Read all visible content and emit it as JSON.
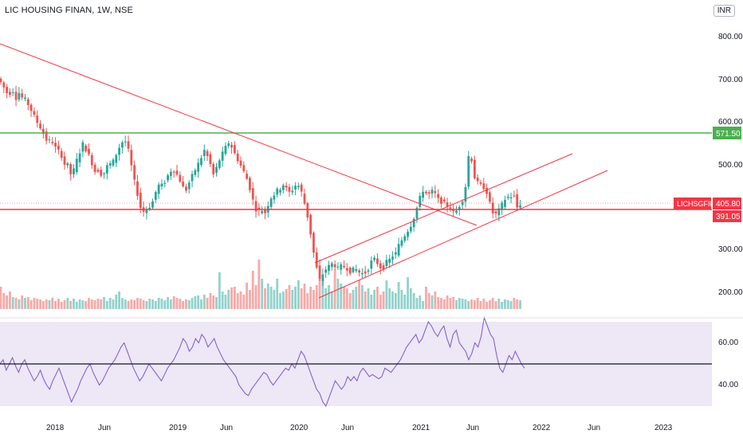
{
  "header": {
    "title": "LIC HOUSING FINAN, 1W, NSE",
    "currency": "INR"
  },
  "chart_data": {
    "type": "candlestick",
    "symbol": "LICHSGFIN",
    "interval": "1W",
    "exchange": "NSE",
    "price_axis": {
      "ticks": [
        "800.00",
        "700.00",
        "600.00",
        "500.00",
        "300.00",
        "200.00"
      ]
    },
    "time_axis": {
      "ticks": [
        "2018",
        "Jun",
        "2019",
        "Jun",
        "2020",
        "Jun",
        "2021",
        "Jun",
        "2022",
        "Jun",
        "2023"
      ]
    },
    "price_path": [
      [
        0,
        718
      ],
      [
        6,
        700
      ],
      [
        12,
        680
      ],
      [
        18,
        690
      ],
      [
        22,
        672
      ],
      [
        26,
        685
      ],
      [
        30,
        672
      ],
      [
        34,
        668
      ],
      [
        38,
        655
      ],
      [
        42,
        640
      ],
      [
        46,
        625
      ],
      [
        50,
        610
      ],
      [
        54,
        600
      ],
      [
        58,
        580
      ],
      [
        62,
        568
      ],
      [
        66,
        575
      ],
      [
        70,
        560
      ],
      [
        74,
        548
      ],
      [
        78,
        545
      ],
      [
        82,
        515
      ],
      [
        86,
        520
      ],
      [
        90,
        492
      ],
      [
        94,
        500
      ],
      [
        98,
        525
      ],
      [
        102,
        545
      ],
      [
        106,
        565
      ],
      [
        110,
        550
      ],
      [
        114,
        535
      ],
      [
        118,
        515
      ],
      [
        122,
        495
      ],
      [
        126,
        505
      ],
      [
        130,
        488
      ],
      [
        134,
        500
      ],
      [
        138,
        520
      ],
      [
        142,
        515
      ],
      [
        146,
        532
      ],
      [
        150,
        550
      ],
      [
        154,
        565
      ],
      [
        158,
        575
      ],
      [
        162,
        558
      ],
      [
        166,
        520
      ],
      [
        170,
        480
      ],
      [
        174,
        450
      ],
      [
        178,
        415
      ],
      [
        182,
        405
      ],
      [
        186,
        410
      ],
      [
        190,
        418
      ],
      [
        194,
        430
      ],
      [
        198,
        455
      ],
      [
        202,
        470
      ],
      [
        206,
        465
      ],
      [
        210,
        480
      ],
      [
        214,
        495
      ],
      [
        218,
        505
      ],
      [
        222,
        498
      ],
      [
        226,
        485
      ],
      [
        230,
        470
      ],
      [
        234,
        450
      ],
      [
        238,
        468
      ],
      [
        242,
        485
      ],
      [
        246,
        500
      ],
      [
        250,
        515
      ],
      [
        254,
        530
      ],
      [
        258,
        550
      ],
      [
        262,
        535
      ],
      [
        266,
        515
      ],
      [
        270,
        490
      ],
      [
        274,
        510
      ],
      [
        278,
        530
      ],
      [
        282,
        545
      ],
      [
        286,
        560
      ],
      [
        290,
        570
      ],
      [
        294,
        550
      ],
      [
        298,
        535
      ],
      [
        302,
        520
      ],
      [
        306,
        505
      ],
      [
        310,
        490
      ],
      [
        314,
        470
      ],
      [
        318,
        440
      ],
      [
        322,
        412
      ],
      [
        326,
        405
      ],
      [
        330,
        410
      ],
      [
        334,
        400
      ],
      [
        338,
        420
      ],
      [
        342,
        438
      ],
      [
        346,
        445
      ],
      [
        350,
        455
      ],
      [
        354,
        460
      ],
      [
        358,
        470
      ],
      [
        362,
        455
      ],
      [
        366,
        448
      ],
      [
        370,
        460
      ],
      [
        374,
        470
      ],
      [
        378,
        462
      ],
      [
        382,
        440
      ],
      [
        386,
        408
      ],
      [
        390,
        375
      ],
      [
        394,
        320
      ],
      [
        398,
        285
      ],
      [
        402,
        240
      ],
      [
        406,
        255
      ],
      [
        410,
        268
      ],
      [
        414,
        275
      ],
      [
        418,
        282
      ],
      [
        422,
        278
      ],
      [
        426,
        270
      ],
      [
        430,
        276
      ],
      [
        434,
        275
      ],
      [
        438,
        270
      ],
      [
        442,
        262
      ],
      [
        446,
        270
      ],
      [
        450,
        268
      ],
      [
        454,
        258
      ],
      [
        458,
        260
      ],
      [
        462,
        262
      ],
      [
        466,
        280
      ],
      [
        470,
        295
      ],
      [
        474,
        288
      ],
      [
        478,
        275
      ],
      [
        482,
        270
      ],
      [
        486,
        285
      ],
      [
        490,
        290
      ],
      [
        494,
        300
      ],
      [
        498,
        305
      ],
      [
        502,
        325
      ],
      [
        506,
        338
      ],
      [
        510,
        350
      ],
      [
        514,
        362
      ],
      [
        518,
        375
      ],
      [
        522,
        395
      ],
      [
        526,
        420
      ],
      [
        530,
        445
      ],
      [
        534,
        460
      ],
      [
        538,
        440
      ],
      [
        542,
        450
      ],
      [
        546,
        455
      ],
      [
        550,
        435
      ],
      [
        554,
        430
      ],
      [
        558,
        425
      ],
      [
        562,
        420
      ],
      [
        566,
        415
      ],
      [
        570,
        402
      ],
      [
        574,
        405
      ],
      [
        578,
        418
      ],
      [
        582,
        432
      ],
      [
        586,
        465
      ],
      [
        590,
        540
      ],
      [
        594,
        525
      ],
      [
        598,
        478
      ],
      [
        602,
        470
      ],
      [
        606,
        465
      ],
      [
        610,
        460
      ],
      [
        614,
        445
      ],
      [
        618,
        410
      ],
      [
        622,
        395
      ],
      [
        626,
        402
      ],
      [
        630,
        415
      ],
      [
        634,
        430
      ],
      [
        638,
        440
      ],
      [
        642,
        438
      ],
      [
        646,
        448
      ],
      [
        650,
        412
      ],
      [
        654,
        425
      ],
      [
        658,
        405
      ]
    ],
    "volume_series": [
      28,
      20,
      17,
      22,
      15,
      14,
      12,
      17,
      14,
      15,
      11,
      14,
      13,
      12,
      10,
      12,
      11,
      14,
      10,
      13,
      9,
      11,
      14,
      10,
      13,
      9,
      12,
      11,
      10,
      14,
      12,
      11,
      13,
      12,
      15,
      10,
      14,
      12,
      18,
      22,
      14,
      12,
      10,
      12,
      11,
      14,
      13,
      11,
      10,
      13,
      12,
      10,
      14,
      13,
      11,
      15,
      12,
      16,
      14,
      13,
      10,
      12,
      11,
      14,
      16,
      17,
      12,
      18,
      14,
      20,
      17,
      15,
      46,
      22,
      18,
      24,
      27,
      28,
      20,
      22,
      18,
      33,
      24,
      48,
      30,
      62,
      38,
      26,
      32,
      28,
      24,
      38,
      20,
      22,
      25,
      30,
      24,
      28,
      36,
      26,
      32,
      20,
      28,
      24,
      30,
      40,
      36,
      26,
      30,
      22,
      50,
      38,
      32,
      28,
      26,
      20,
      24,
      28,
      36,
      30,
      22,
      26,
      18,
      24,
      28,
      18,
      22,
      36,
      26,
      22,
      20,
      34,
      24,
      18,
      40,
      26,
      20,
      14,
      17,
      10
    ],
    "hlines": [
      {
        "label": "571.50",
        "color": "#4caf50"
      },
      {
        "label": "391.05",
        "color": "#f23645"
      }
    ],
    "last_price": "405.80",
    "trendline_color": "#f23645",
    "rsi": {
      "ticks": [
        "60.00",
        "40.00"
      ],
      "mid_value": 50,
      "line_color": "#7e57c2",
      "series": [
        50,
        52,
        47,
        50,
        53,
        49,
        46,
        50,
        52,
        48,
        45,
        42,
        44,
        47,
        43,
        40,
        38,
        42,
        45,
        48,
        44,
        40,
        36,
        32,
        35,
        38,
        42,
        45,
        48,
        50,
        46,
        43,
        40,
        42,
        45,
        48,
        50,
        52,
        55,
        58,
        60,
        56,
        52,
        48,
        45,
        42,
        44,
        47,
        50,
        48,
        46,
        44,
        42,
        45,
        48,
        50,
        52,
        55,
        58,
        62,
        60,
        56,
        58,
        62,
        60,
        64,
        62,
        58,
        60,
        62,
        58,
        55,
        52,
        50,
        48,
        46,
        44,
        40,
        38,
        36,
        35,
        38,
        40,
        42,
        44,
        46,
        45,
        42,
        40,
        42,
        44,
        46,
        48,
        47,
        50,
        48,
        52,
        56,
        54,
        50,
        46,
        42,
        38,
        36,
        32,
        30,
        34,
        38,
        42,
        40,
        38,
        40,
        44,
        42,
        44,
        42,
        46,
        48,
        46,
        44,
        45,
        44,
        43,
        44,
        48,
        47,
        46,
        48,
        50,
        52,
        55,
        58,
        60,
        62,
        64,
        60,
        62,
        66,
        70,
        68,
        65,
        63,
        66,
        68,
        62,
        58,
        64,
        66,
        60,
        58,
        56,
        52,
        55,
        60,
        58,
        63,
        72,
        68,
        64,
        62,
        54,
        48,
        46,
        50,
        54,
        52,
        56,
        53,
        50,
        48
      ]
    }
  }
}
